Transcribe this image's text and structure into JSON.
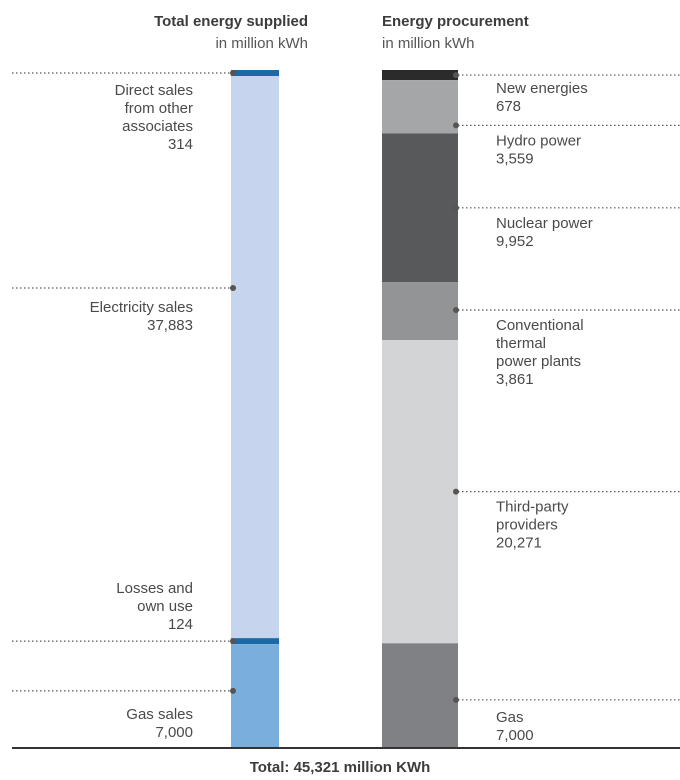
{
  "chart_data": {
    "type": "stacked-bar",
    "total_label": "Total: 45,321 million KWh",
    "bars": [
      {
        "title": "Total energy supplied",
        "subtitle": "in million kWh",
        "segments": [
          {
            "name": "Direct sales from other associates",
            "lines": [
              "Direct sales",
              "from other",
              "associates"
            ],
            "value_label": "314",
            "value": 314,
            "color": "#1b6aa5"
          },
          {
            "name": "Electricity sales",
            "lines": [
              "Electricity sales"
            ],
            "value_label": "37,883",
            "value": 37883,
            "color": "#c6d4ee"
          },
          {
            "name": "Losses and own use",
            "lines": [
              "Losses and",
              "own use"
            ],
            "value_label": "124",
            "value": 124,
            "color": "#1b6aa5"
          },
          {
            "name": "Gas sales",
            "lines": [
              "Gas sales"
            ],
            "value_label": "7,000",
            "value": 7000,
            "color": "#7aaedc"
          }
        ]
      },
      {
        "title": "Energy procurement",
        "subtitle": "in million kWh",
        "segments": [
          {
            "name": "New energies",
            "lines": [
              "New energies"
            ],
            "value_label": "678",
            "value": 678,
            "color": "#2b2b2b"
          },
          {
            "name": "Hydro power",
            "lines": [
              "Hydro power"
            ],
            "value_label": "3,559",
            "value": 3559,
            "color": "#a5a6a8"
          },
          {
            "name": "Nuclear power",
            "lines": [
              "Nuclear power"
            ],
            "value_label": "9,952",
            "value": 9952,
            "color": "#58595b"
          },
          {
            "name": "Conventional thermal power plants",
            "lines": [
              "Conventional",
              "thermal",
              "power plants"
            ],
            "value_label": "3,861",
            "value": 3861,
            "color": "#939496"
          },
          {
            "name": "Third-party providers",
            "lines": [
              "Third-party",
              "providers"
            ],
            "value_label": "20,271",
            "value": 20271,
            "color": "#d3d4d5"
          },
          {
            "name": "Gas",
            "lines": [
              "Gas"
            ],
            "value_label": "7,000",
            "value": 7000,
            "color": "#808184"
          }
        ]
      }
    ]
  }
}
